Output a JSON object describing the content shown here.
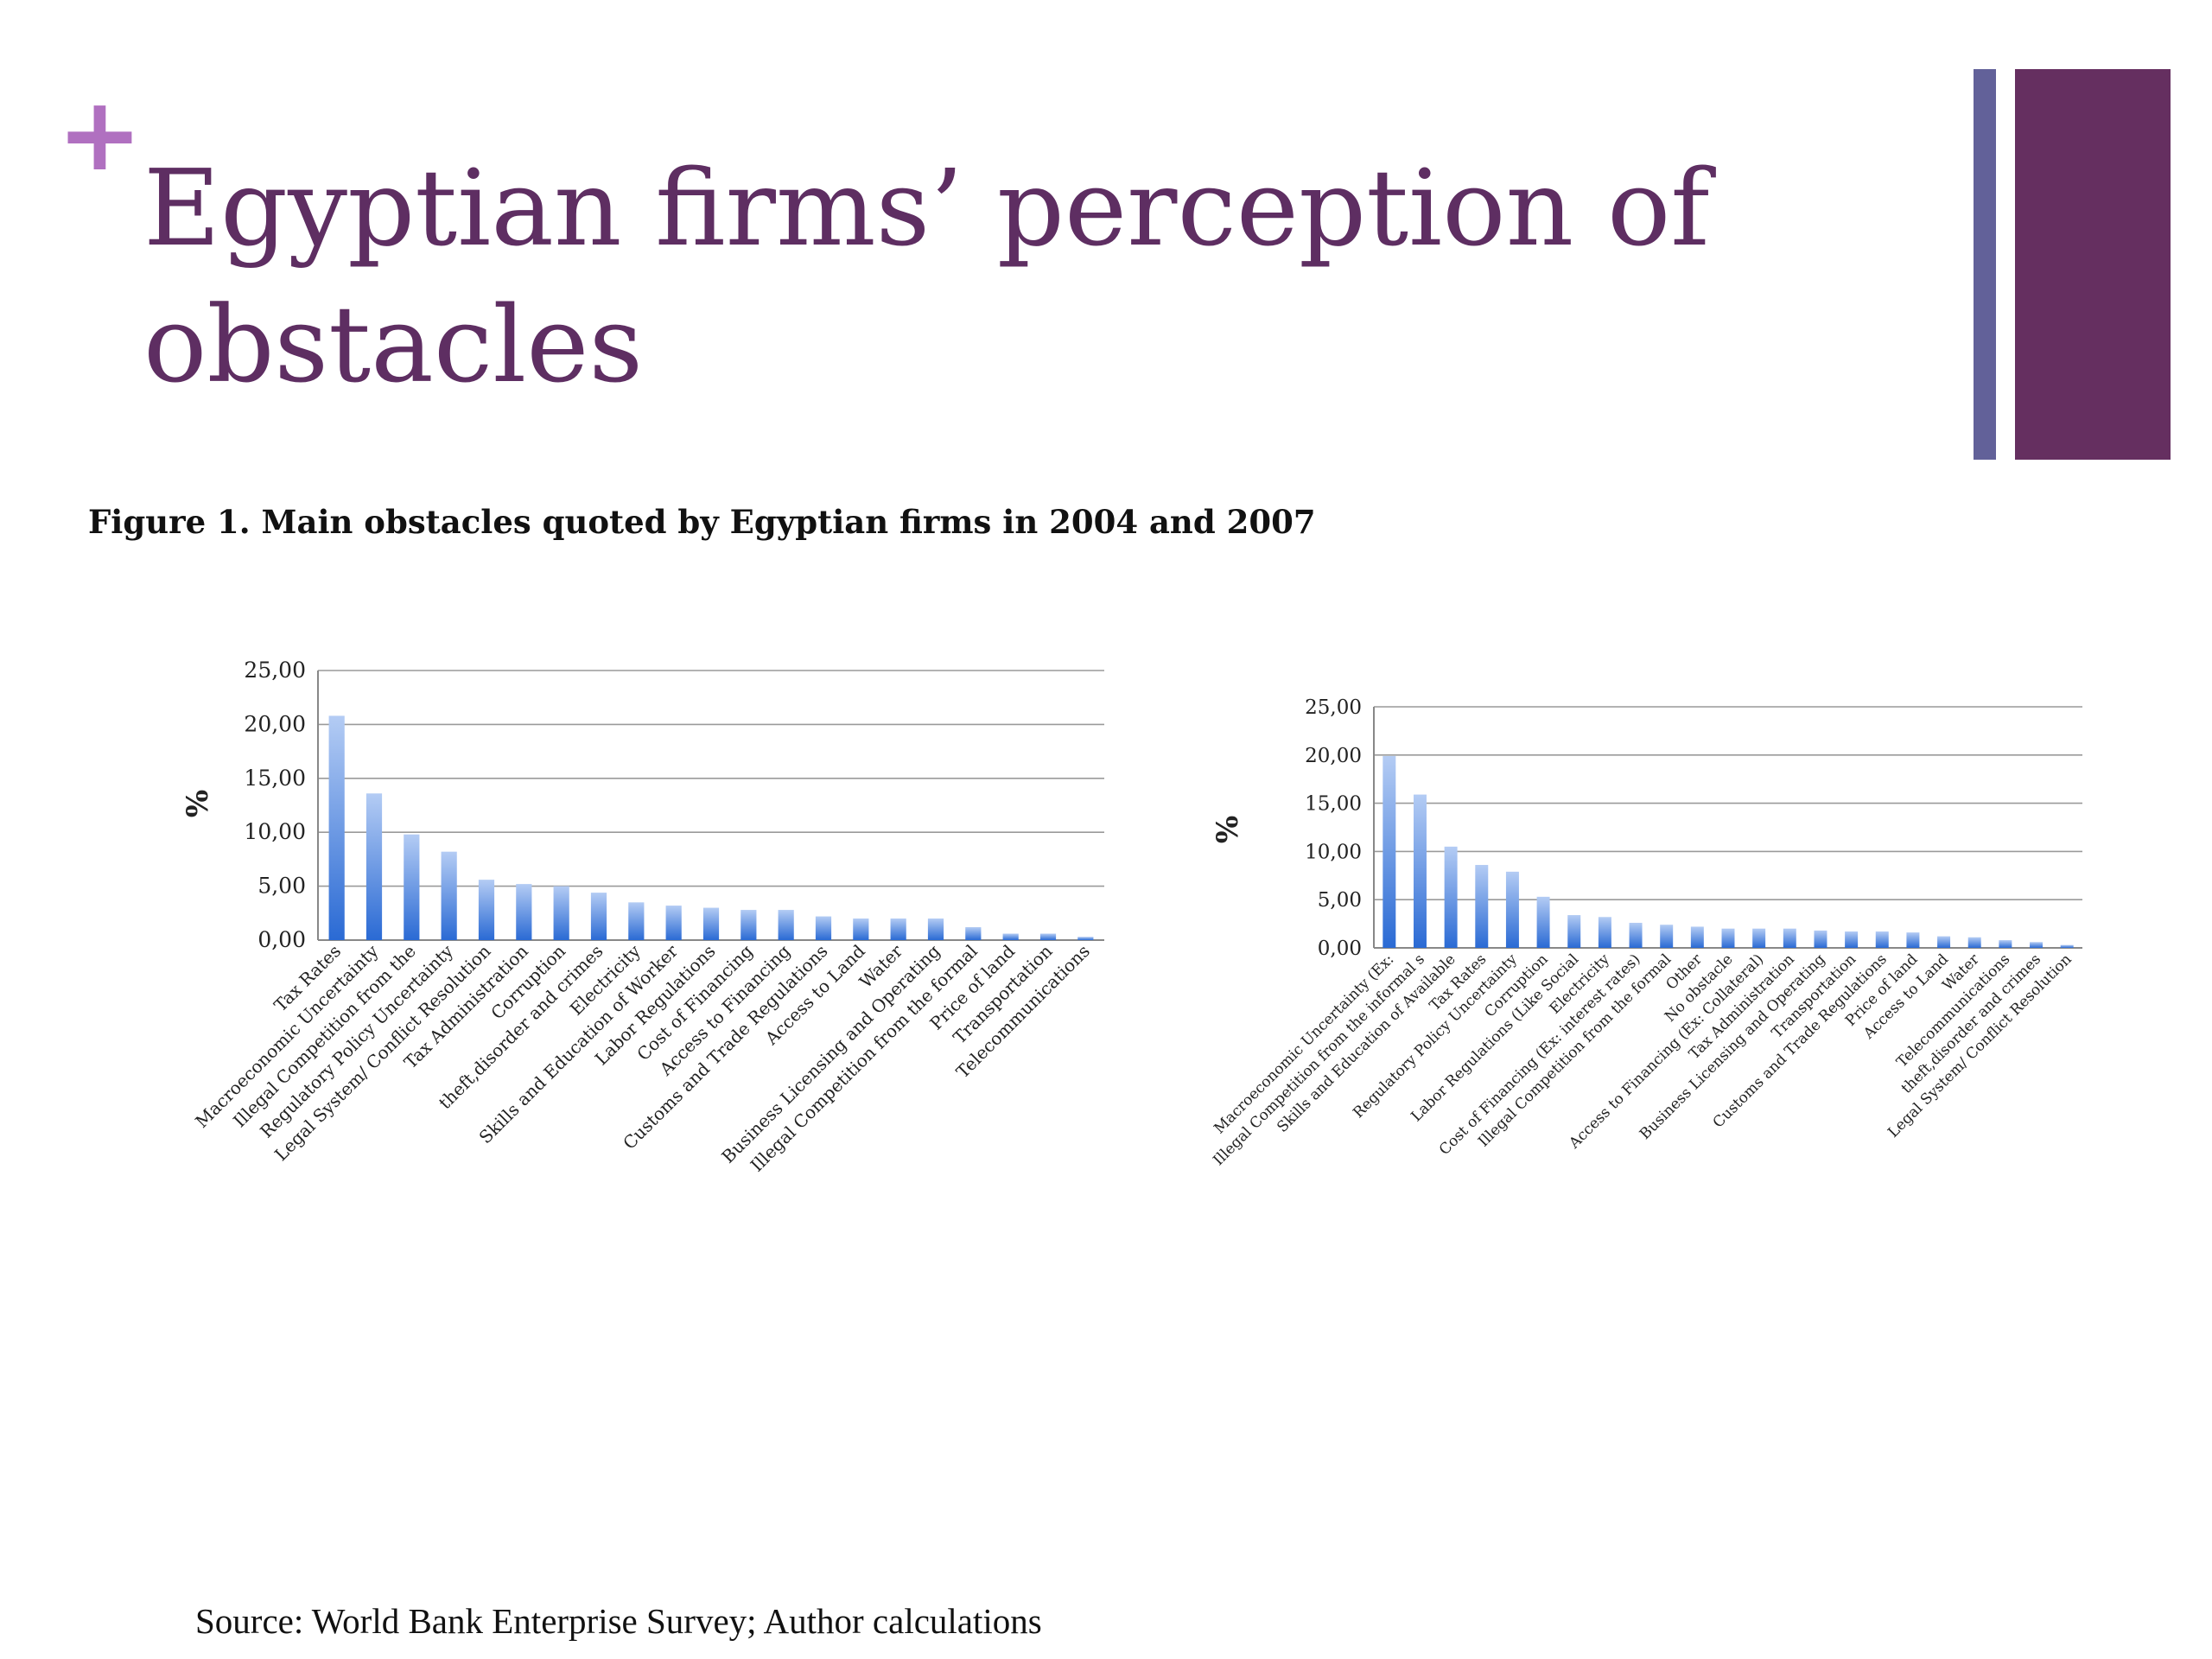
{
  "slide": {
    "plus_symbol": "+",
    "title": "Egyptian firms’ perception of obstacles",
    "figure_caption": "Figure 1. Main obstacles quoted by Egyptian firms in 2004 and 2007",
    "source": "Source: World Bank Enterprise Survey; Author calculations",
    "colors": {
      "accent": "#b070c0",
      "title": "#5e2e62",
      "bar_narrow": "#626199",
      "bar_wide": "#652f60",
      "bar_top": "#b4ccf4",
      "bar_bottom": "#2a6ad4"
    }
  },
  "chart_data": [
    {
      "type": "bar",
      "ylabel": "%",
      "ylim": [
        0,
        25
      ],
      "yticks": [
        0,
        5,
        10,
        15,
        20,
        25
      ],
      "ytick_labels": [
        "0,00",
        "5,00",
        "10,00",
        "15,00",
        "20,00",
        "25,00"
      ],
      "grid": true,
      "categories": [
        "Tax Rates",
        "Macroeconomic Uncertainty",
        "Illegal Competition from the",
        "Regulatory Policy Uncertainty",
        "Legal System/ Conflict Resolution",
        "Tax Administration",
        "Corruption",
        "theft,disorder and crimes",
        "Electricity",
        "Skills and Education of Worker",
        "Labor Regulations",
        "Cost of Financing",
        "Access to Financing",
        "Customs and Trade Regulations",
        "Access to Land",
        "Water",
        "Business Licensing and Operating",
        "Illegal Competition from the formal",
        "Price of land",
        "Transportation",
        "Telecommunications"
      ],
      "values": [
        20.8,
        13.6,
        9.8,
        8.2,
        5.6,
        5.2,
        5.0,
        4.4,
        3.5,
        3.2,
        3.0,
        2.8,
        2.8,
        2.2,
        2.0,
        2.0,
        2.0,
        1.2,
        0.6,
        0.6,
        0.3
      ]
    },
    {
      "type": "bar",
      "ylabel": "%",
      "ylim": [
        0,
        25
      ],
      "yticks": [
        0,
        5,
        10,
        15,
        20,
        25
      ],
      "ytick_labels": [
        "0,00",
        "5,00",
        "10,00",
        "15,00",
        "20,00",
        "25,00"
      ],
      "grid": true,
      "categories": [
        "Macroeconomic Uncertainty (Ex:",
        "Illegal Competition from the informal s",
        "Skills and Education of Available",
        "Tax Rates",
        "Regulatory Policy Uncertainty",
        "Corruption",
        "Labor Regulations (Like Social",
        "Electricity",
        "Cost of Financing (Ex: interest rates)",
        "Illegal Competition from the formal",
        "Other",
        "No obstacle",
        "Access to Financing (Ex: Collateral)",
        "Tax Administration",
        "Business Licensing and Operating",
        "Transportation",
        "Customs and Trade Regulations",
        "Price of land",
        "Access to Land",
        "Water",
        "Telecommunications",
        "theft,disorder and crimes",
        "Legal System/ Conflict Resolution"
      ],
      "values": [
        19.9,
        15.9,
        10.5,
        8.6,
        7.9,
        5.3,
        3.4,
        3.2,
        2.6,
        2.4,
        2.2,
        2.0,
        2.0,
        2.0,
        1.8,
        1.7,
        1.7,
        1.6,
        1.2,
        1.1,
        0.8,
        0.6,
        0.3
      ]
    }
  ]
}
